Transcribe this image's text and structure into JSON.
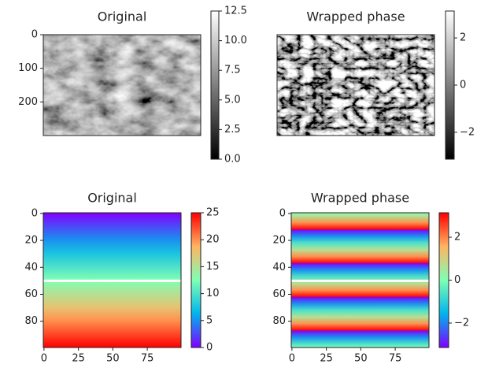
{
  "chart_data": [
    {
      "type": "image",
      "title": "Original",
      "cmap": "gray",
      "ylim": [
        0,
        300
      ],
      "yticks": [
        0,
        100,
        200
      ],
      "clim": [
        0,
        12.5
      ],
      "cticks": [
        {
          "value": 0,
          "label": "0.0"
        },
        2.5,
        {
          "value": 5,
          "label": "5.0"
        },
        7.5,
        {
          "value": 10,
          "label": "10.0"
        },
        12.5
      ]
    },
    {
      "type": "image",
      "title": "Wrapped phase",
      "cmap": "gray",
      "ylim": [
        0,
        300
      ],
      "yticks": [],
      "clim": [
        -3.14,
        3.14
      ],
      "cticks": [
        {
          "value": -2,
          "label": "−2"
        },
        0,
        2
      ]
    },
    {
      "type": "image",
      "title": "Original",
      "cmap": "rainbow",
      "xlim": [
        -0.5,
        99.5
      ],
      "xticks": [
        0,
        25,
        50,
        75
      ],
      "ylim": [
        -0.5,
        99.5
      ],
      "yticks": [
        0,
        20,
        40,
        60,
        80
      ],
      "clim": [
        0,
        25
      ],
      "cticks": [
        0,
        5,
        10,
        15,
        20,
        25
      ]
    },
    {
      "type": "image",
      "title": "Wrapped phase",
      "cmap": "rainbow",
      "xlim": [
        -0.5,
        99.5
      ],
      "xticks": [
        0,
        25,
        50,
        75
      ],
      "ylim": [
        -0.5,
        99.5
      ],
      "yticks": [
        0,
        20,
        40,
        60,
        80
      ],
      "clim": [
        -3.14,
        3.14
      ],
      "cticks": [
        {
          "value": -2,
          "label": "−2"
        },
        0,
        2
      ]
    }
  ]
}
